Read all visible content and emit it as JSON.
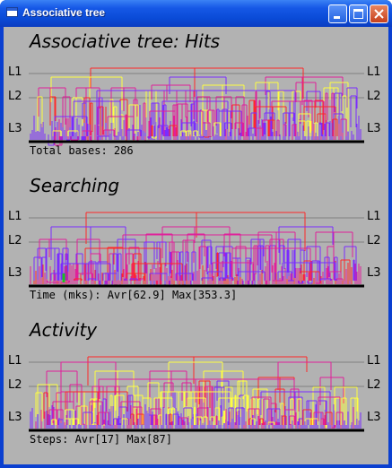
{
  "window": {
    "title": "Associative tree",
    "controls": {
      "minimize": "minimize-icon",
      "maximize": "maximize-icon",
      "close": "close-icon"
    }
  },
  "levels": {
    "l1": "L1",
    "l2": "L2",
    "l3": "L3"
  },
  "panels": [
    {
      "title": "Associative tree: Hits",
      "caption": "Total bases: 286"
    },
    {
      "title": "Searching",
      "caption": "Time (mks): Avr[62.9] Max[353.3]"
    },
    {
      "title": "Activity",
      "caption": "Steps: Avr[17] Max[87]"
    }
  ],
  "colors": {
    "background": "#b2b2b2",
    "level_line": "#808080",
    "baseline": "#000000",
    "purple": "#7a2cff",
    "magenta": "#e0209a",
    "red": "#ff2828",
    "yellow": "#ffff40",
    "green": "#20c020",
    "titlebar": "#0a4ad6"
  }
}
